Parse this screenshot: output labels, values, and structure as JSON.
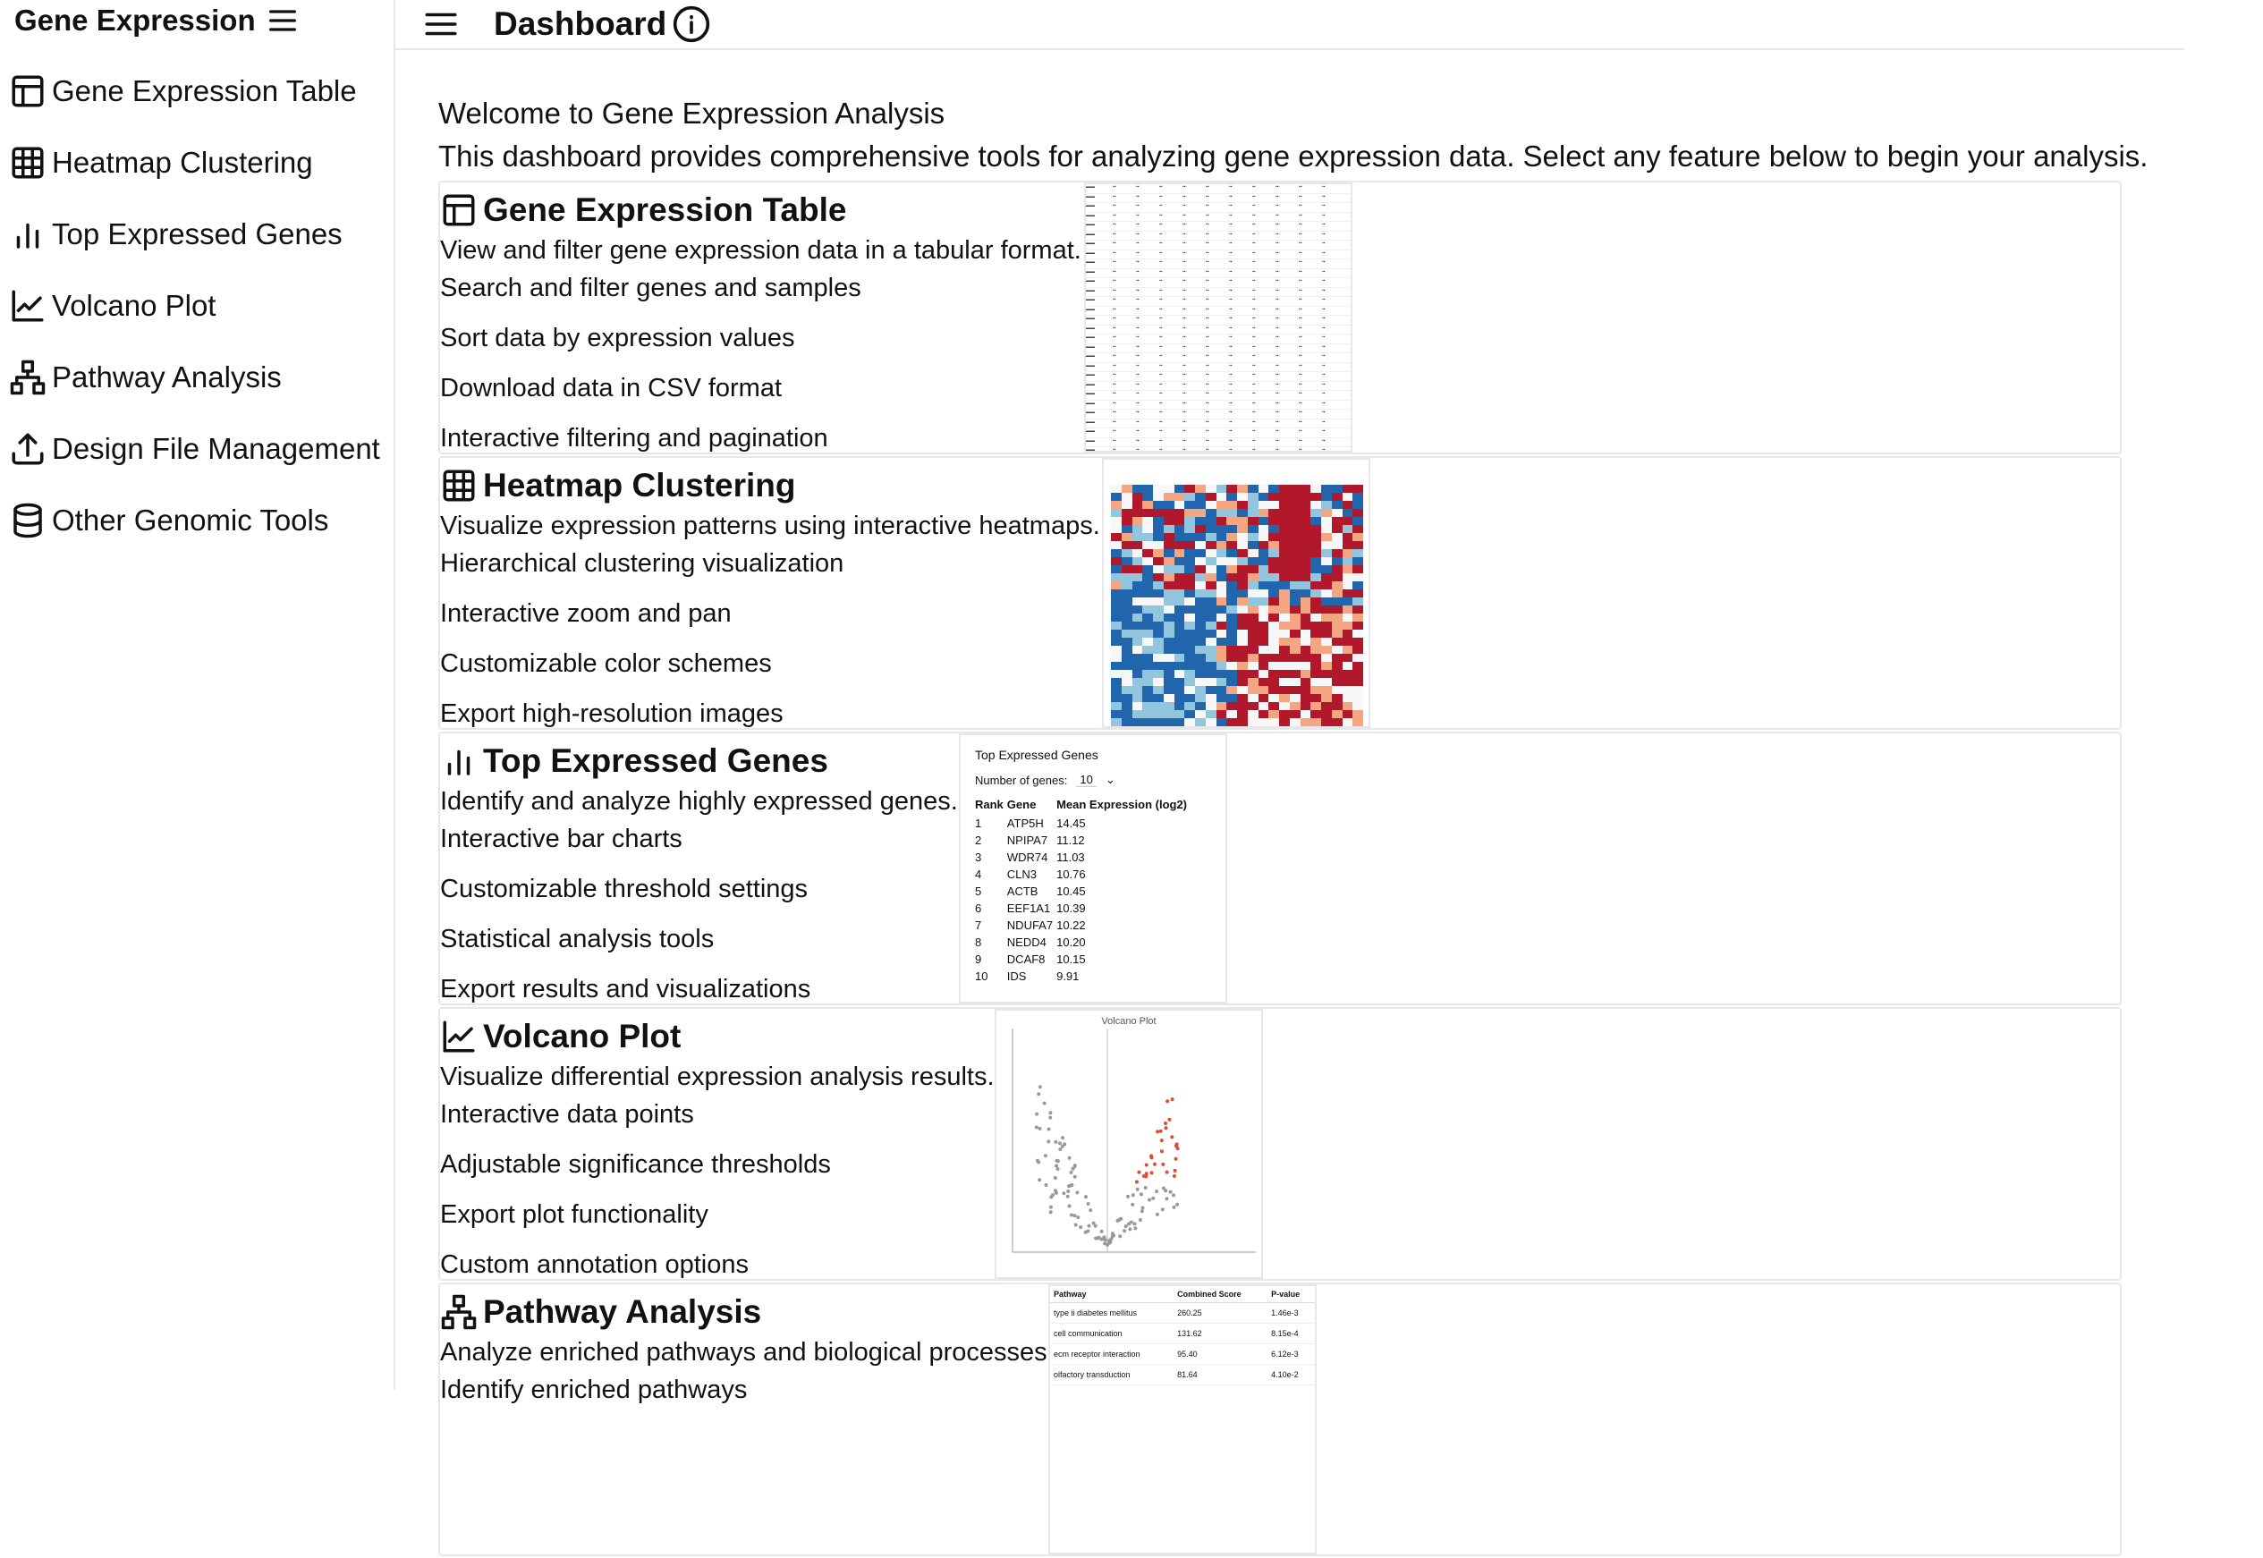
{
  "sidebar": {
    "title": "Gene Expression",
    "items": [
      {
        "label": "Gene Expression Table",
        "icon": "table-icon"
      },
      {
        "label": "Heatmap Clustering",
        "icon": "grid-icon"
      },
      {
        "label": "Top Expressed Genes",
        "icon": "bar-chart-icon"
      },
      {
        "label": "Volcano Plot",
        "icon": "line-chart-icon"
      },
      {
        "label": "Pathway Analysis",
        "icon": "network-icon"
      },
      {
        "label": "Design File Management",
        "icon": "upload-icon"
      },
      {
        "label": "Other Genomic Tools",
        "icon": "database-icon"
      }
    ]
  },
  "header": {
    "title": "Dashboard"
  },
  "main": {
    "welcome": "Welcome to Gene Expression Analysis",
    "description": "This dashboard provides comprehensive tools for analyzing gene expression data. Select any feature below to begin your analysis."
  },
  "features": [
    {
      "title": "Gene Expression Table",
      "description": "View and filter gene expression data in a tabular format.",
      "bullets": [
        "Search and filter genes and samples",
        "Sort data by expression values",
        "Download data in CSV format",
        "Interactive filtering and pagination"
      ]
    },
    {
      "title": "Heatmap Clustering",
      "description": "Visualize expression patterns using interactive heatmaps.",
      "bullets": [
        "Hierarchical clustering visualization",
        "Interactive zoom and pan",
        "Customizable color schemes",
        "Export high-resolution images"
      ]
    },
    {
      "title": "Top Expressed Genes",
      "description": "Identify and analyze highly expressed genes.",
      "bullets": [
        "Interactive bar charts",
        "Customizable threshold settings",
        "Statistical analysis tools",
        "Export results and visualizations"
      ]
    },
    {
      "title": "Volcano Plot",
      "description": "Visualize differential expression analysis results.",
      "bullets": [
        "Interactive data points",
        "Adjustable significance thresholds",
        "Export plot functionality",
        "Custom annotation options"
      ]
    },
    {
      "title": "Pathway Analysis",
      "description": "Analyze enriched pathways and biological processes.",
      "bullets": [
        "Identify enriched pathways"
      ]
    }
  ],
  "top_genes_preview": {
    "title": "Top Expressed Genes",
    "control_label": "Number of genes:",
    "control_value": "10",
    "headers": [
      "Rank",
      "Gene",
      "Mean Expression (log2)"
    ],
    "rows": [
      [
        "1",
        "ATP5H",
        "14.45"
      ],
      [
        "2",
        "NPIPA7",
        "11.12"
      ],
      [
        "3",
        "WDR74",
        "11.03"
      ],
      [
        "4",
        "CLN3",
        "10.76"
      ],
      [
        "5",
        "ACTB",
        "10.45"
      ],
      [
        "6",
        "EEF1A1",
        "10.39"
      ],
      [
        "7",
        "NDUFA7",
        "10.22"
      ],
      [
        "8",
        "NEDD4",
        "10.20"
      ],
      [
        "9",
        "DCAF8",
        "10.15"
      ],
      [
        "10",
        "IDS",
        "9.91"
      ]
    ]
  },
  "volcano_preview": {
    "title": "Volcano Plot"
  },
  "pathway_preview": {
    "headers": [
      "Pathway",
      "Combined Score",
      "P-value"
    ],
    "rows": [
      [
        "type ii diabetes mellitus",
        "260.25",
        "1.46e-3"
      ],
      [
        "cell communication",
        "131.62",
        "8.15e-4"
      ],
      [
        "ecm receptor interaction",
        "95.40",
        "6.12e-3"
      ],
      [
        "olfactory transduction",
        "81.64",
        "4.10e-2"
      ]
    ]
  },
  "colors": {
    "border": "#e5e7eb",
    "text": "#111111",
    "heat_high": "#b2182b",
    "heat_low": "#2166ac",
    "volcano_sig": "#e34a33"
  }
}
